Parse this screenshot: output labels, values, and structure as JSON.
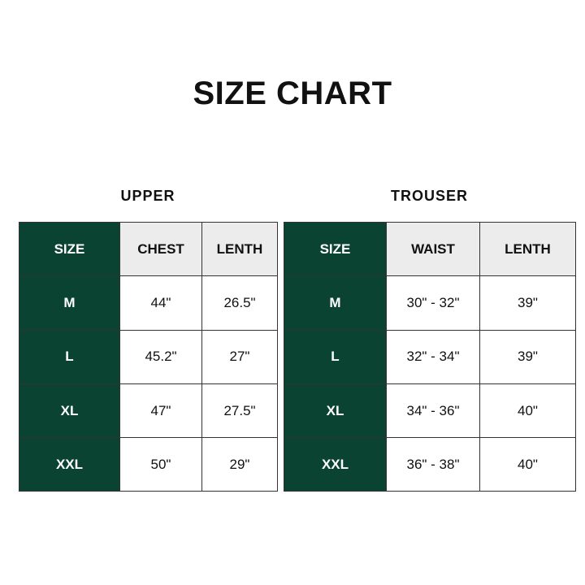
{
  "title": "SIZE CHART",
  "colors": {
    "size_column": "#0b4332",
    "header": "#ececec"
  },
  "upper": {
    "title": "UPPER",
    "headers": [
      "SIZE",
      "CHEST",
      "LENTH"
    ],
    "rows": [
      [
        "M",
        "44\"",
        "26.5\""
      ],
      [
        "L",
        "45.2\"",
        "27\""
      ],
      [
        "XL",
        "47\"",
        "27.5\""
      ],
      [
        "XXL",
        "50\"",
        "29\""
      ]
    ]
  },
  "trouser": {
    "title": "TROUSER",
    "headers": [
      "SIZE",
      "WAIST",
      "LENTH"
    ],
    "rows": [
      [
        "M",
        "30\" - 32\"",
        "39\""
      ],
      [
        "L",
        "32\" - 34\"",
        "39\""
      ],
      [
        "XL",
        "34\" - 36\"",
        "40\""
      ],
      [
        "XXL",
        "36\" - 38\"",
        "40\""
      ]
    ]
  }
}
